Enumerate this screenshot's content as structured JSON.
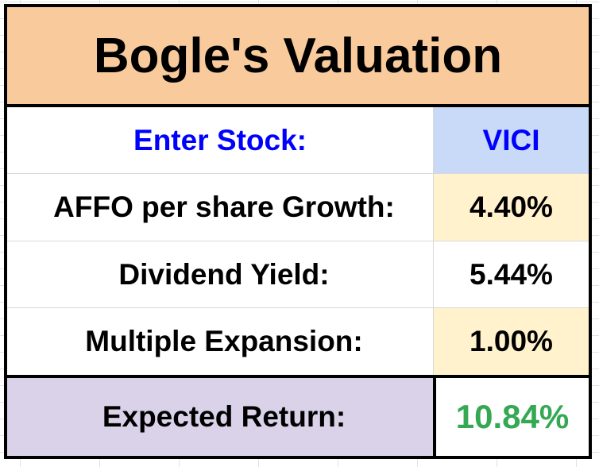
{
  "title": "Bogle's Valuation",
  "rows": [
    {
      "label": "Enter Stock:",
      "value": "VICI"
    },
    {
      "label": "AFFO per share Growth:",
      "value": "4.40%"
    },
    {
      "label": "Dividend Yield:",
      "value": "5.44%"
    },
    {
      "label": "Multiple Expansion:",
      "value": "1.00%"
    }
  ],
  "result": {
    "label": "Expected Return:",
    "value": "10.84%"
  },
  "colors": {
    "title_bg": "#f9cb9c",
    "input_bg": "#c9daf8",
    "input_text": "#0000ff",
    "highlight_bg": "#fff2cc",
    "result_label_bg": "#d9d2e9",
    "result_text": "#34a853"
  }
}
